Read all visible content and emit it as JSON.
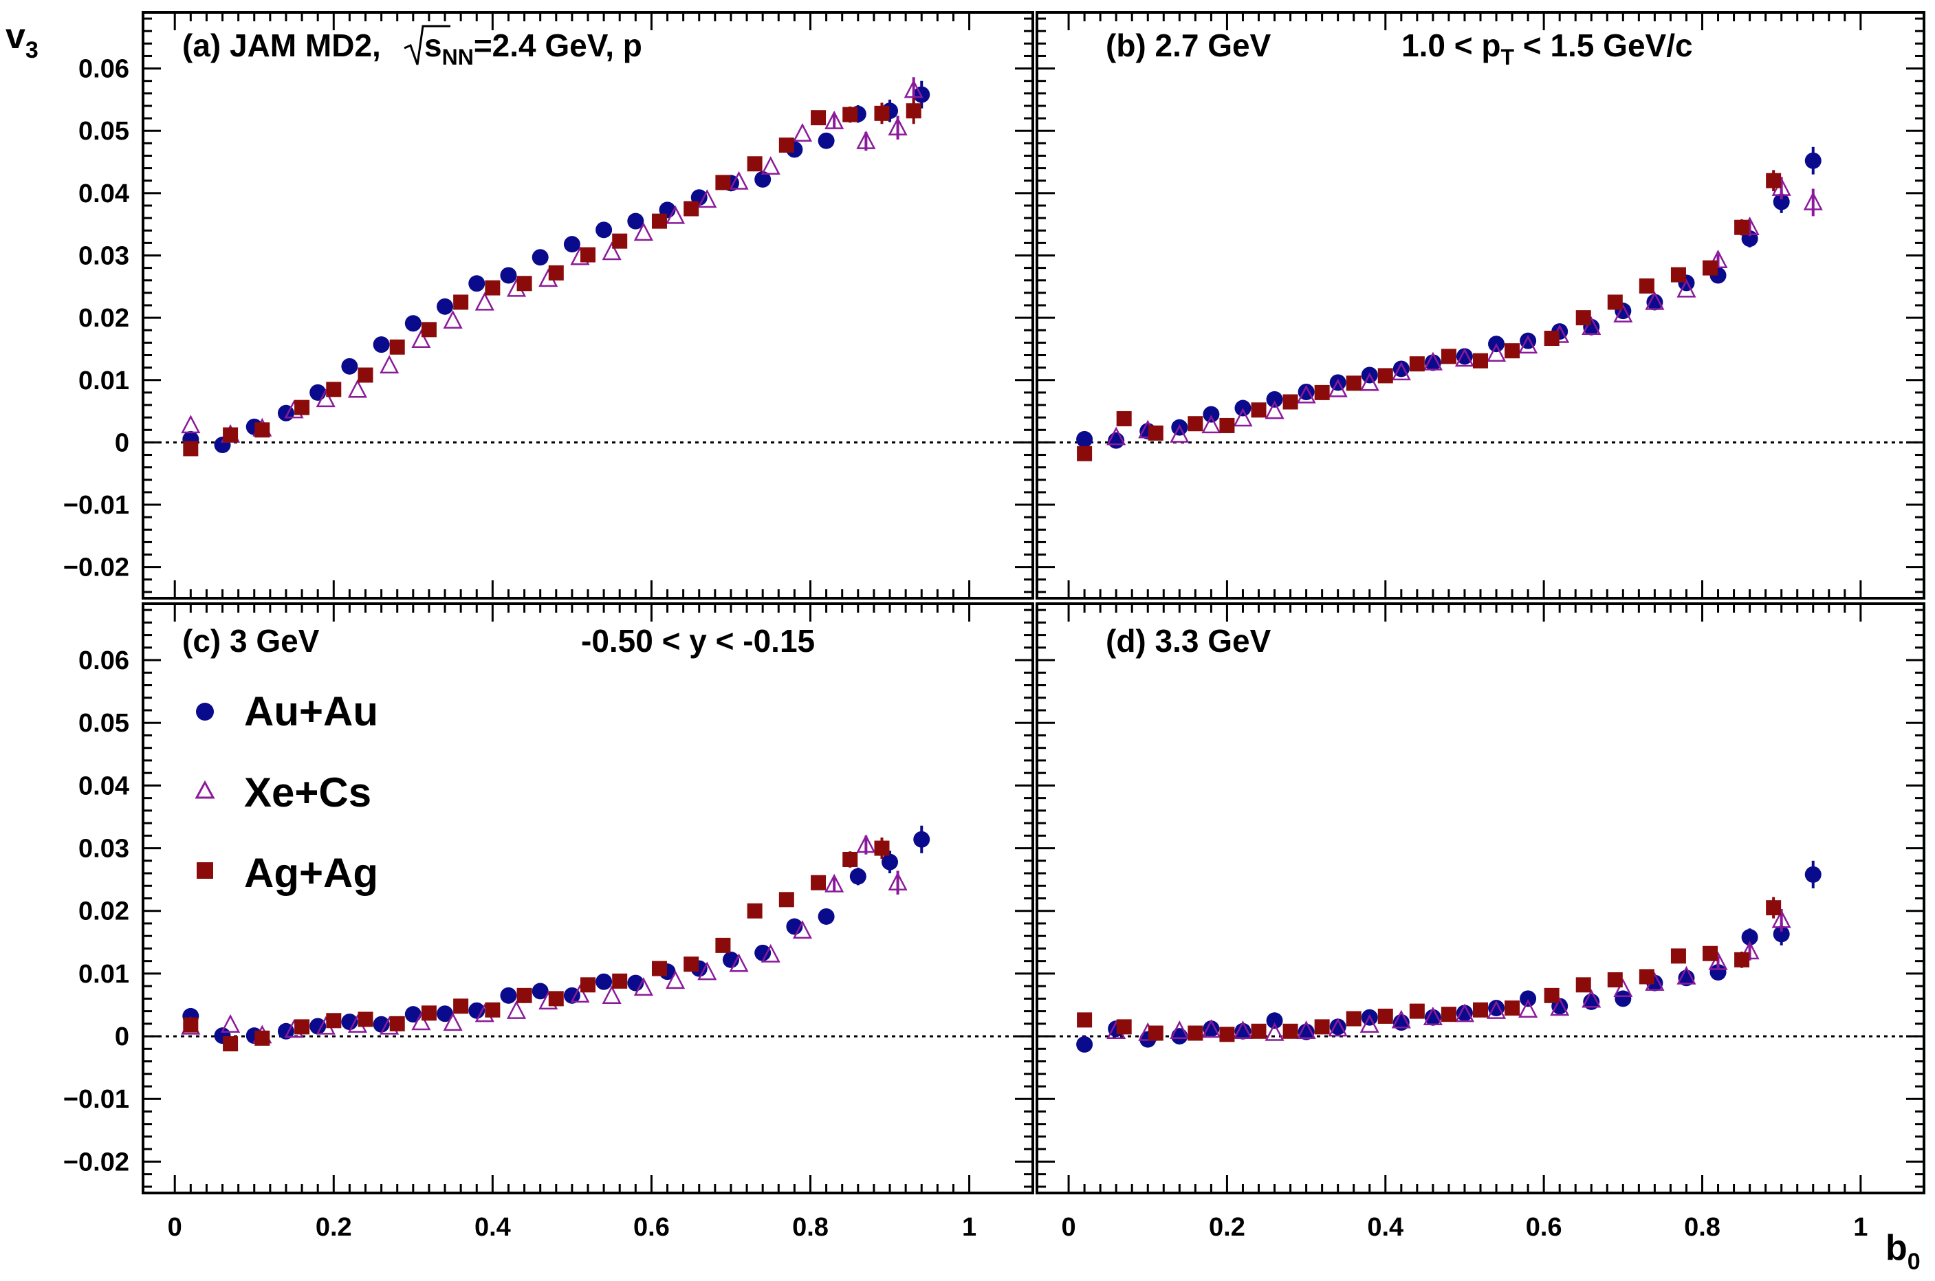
{
  "chart_data": {
    "type": "scatter",
    "xlabel": "b",
    "xlabel_sub": "0",
    "ylabel": "v",
    "ylabel_sub": "3",
    "xlim": [
      -0.04,
      1.08
    ],
    "ylim": [
      -0.025,
      0.069
    ],
    "x_ticks": [
      "0",
      "0.2",
      "0.4",
      "0.6",
      "0.8",
      "1"
    ],
    "y_ticks": [
      "0.06",
      "0.05",
      "0.04",
      "0.03",
      "0.02",
      "0.01",
      "0",
      "−0.01",
      "−0.02"
    ],
    "reference_line": 0,
    "legend": {
      "placement": "panel-c-left",
      "entries": [
        {
          "name": "Au+Au",
          "marker": "filled-circle",
          "color": "#0a0a8c"
        },
        {
          "name": "Xe+Cs",
          "marker": "open-triangle",
          "color": "#8b1a9b"
        },
        {
          "name": "Ag+Ag",
          "marker": "filled-square",
          "color": "#8b0a0a"
        }
      ]
    },
    "panels": [
      {
        "id": "a",
        "label_pre": "(a) JAM MD2,",
        "label_root": "s",
        "label_root_sub": "NN",
        "label_post": "=2.4 GeV, p",
        "cut_pre": "",
        "cut_sub": "",
        "cut_post": "",
        "series": [
          {
            "name": "Au+Au",
            "x": [
              0.02,
              0.06,
              0.1,
              0.14,
              0.18,
              0.22,
              0.26,
              0.3,
              0.34,
              0.38,
              0.42,
              0.46,
              0.5,
              0.54,
              0.58,
              0.62,
              0.66,
              0.7,
              0.74,
              0.78,
              0.82,
              0.86,
              0.9,
              0.94
            ],
            "y": [
              0.0005,
              -0.0004,
              0.0025,
              0.0047,
              0.008,
              0.0122,
              0.0157,
              0.0191,
              0.0218,
              0.0255,
              0.0268,
              0.0297,
              0.0318,
              0.0341,
              0.0355,
              0.0373,
              0.0393,
              0.0416,
              0.0422,
              0.047,
              0.0484,
              0.0527,
              0.0532,
              0.0558
            ]
          },
          {
            "name": "Xe+Cs",
            "x": [
              0.02,
              0.07,
              0.11,
              0.15,
              0.19,
              0.23,
              0.27,
              0.31,
              0.35,
              0.39,
              0.43,
              0.47,
              0.51,
              0.55,
              0.59,
              0.63,
              0.67,
              0.71,
              0.75,
              0.79,
              0.83,
              0.87,
              0.91,
              0.93
            ],
            "y": [
              0.0027,
              0.0012,
              0.0022,
              0.0051,
              0.0069,
              0.0084,
              0.0123,
              0.0164,
              0.0195,
              0.0224,
              0.0246,
              0.0262,
              0.0297,
              0.0305,
              0.0336,
              0.0363,
              0.0389,
              0.0418,
              0.0442,
              0.0495,
              0.0515,
              0.0483,
              0.0505,
              0.0565
            ]
          },
          {
            "name": "Ag+Ag",
            "x": [
              0.02,
              0.07,
              0.11,
              0.16,
              0.2,
              0.24,
              0.28,
              0.32,
              0.36,
              0.4,
              0.44,
              0.48,
              0.52,
              0.56,
              0.61,
              0.65,
              0.69,
              0.73,
              0.77,
              0.81,
              0.85,
              0.89,
              0.93
            ],
            "y": [
              -0.001,
              0.0012,
              0.002,
              0.0056,
              0.0085,
              0.0108,
              0.0153,
              0.0181,
              0.0225,
              0.0248,
              0.0255,
              0.0272,
              0.0301,
              0.0323,
              0.0355,
              0.0375,
              0.0417,
              0.0447,
              0.0477,
              0.0521,
              0.0526,
              0.0528,
              0.0532
            ]
          }
        ]
      },
      {
        "id": "b",
        "label_pre": "(b) 2.7 GeV",
        "label_root": "",
        "label_root_sub": "",
        "label_post": "",
        "cut_pre": "1.0 < p",
        "cut_sub": "T",
        "cut_post": " < 1.5 GeV/c",
        "series": [
          {
            "name": "Au+Au",
            "x": [
              0.02,
              0.06,
              0.1,
              0.14,
              0.18,
              0.22,
              0.26,
              0.3,
              0.34,
              0.38,
              0.42,
              0.46,
              0.5,
              0.54,
              0.58,
              0.62,
              0.66,
              0.7,
              0.74,
              0.78,
              0.82,
              0.86,
              0.9,
              0.94
            ],
            "y": [
              0.0005,
              0.0003,
              0.0018,
              0.0024,
              0.0045,
              0.0055,
              0.0069,
              0.0081,
              0.0096,
              0.0108,
              0.0118,
              0.0128,
              0.0138,
              0.0158,
              0.0163,
              0.0178,
              0.0185,
              0.0211,
              0.0225,
              0.0256,
              0.0268,
              0.0327,
              0.0386,
              0.0452
            ]
          },
          {
            "name": "Xe+Cs",
            "x": [
              0.06,
              0.1,
              0.14,
              0.18,
              0.22,
              0.26,
              0.3,
              0.34,
              0.38,
              0.42,
              0.46,
              0.5,
              0.54,
              0.58,
              0.62,
              0.66,
              0.7,
              0.74,
              0.78,
              0.82,
              0.86,
              0.9,
              0.94
            ],
            "y": [
              0.0008,
              0.0019,
              0.0012,
              0.0027,
              0.0038,
              0.005,
              0.0075,
              0.0085,
              0.0095,
              0.0112,
              0.0128,
              0.0134,
              0.0142,
              0.0155,
              0.0172,
              0.0185,
              0.0205,
              0.0225,
              0.0245,
              0.0292,
              0.0345,
              0.0408,
              0.0385
            ]
          },
          {
            "name": "Ag+Ag",
            "x": [
              0.02,
              0.07,
              0.11,
              0.16,
              0.2,
              0.24,
              0.28,
              0.32,
              0.36,
              0.4,
              0.44,
              0.48,
              0.52,
              0.56,
              0.61,
              0.65,
              0.69,
              0.73,
              0.77,
              0.81,
              0.85,
              0.89
            ],
            "y": [
              -0.0018,
              0.0038,
              0.0015,
              0.003,
              0.0027,
              0.0052,
              0.0065,
              0.008,
              0.0095,
              0.0107,
              0.0126,
              0.0138,
              0.0131,
              0.0147,
              0.0167,
              0.02,
              0.0225,
              0.0251,
              0.0269,
              0.028,
              0.0345,
              0.042
            ]
          }
        ]
      },
      {
        "id": "c",
        "label_pre": "(c) 3 GeV",
        "label_root": "",
        "label_root_sub": "",
        "label_post": "",
        "cut_pre": "-0.50 < y < -0.15",
        "cut_sub": "",
        "cut_post": "",
        "series": [
          {
            "name": "Au+Au",
            "x": [
              0.02,
              0.06,
              0.1,
              0.14,
              0.18,
              0.22,
              0.26,
              0.3,
              0.34,
              0.38,
              0.42,
              0.46,
              0.5,
              0.54,
              0.58,
              0.62,
              0.66,
              0.7,
              0.74,
              0.78,
              0.82,
              0.86,
              0.9,
              0.94
            ],
            "y": [
              0.0032,
              0.0001,
              0.0001,
              0.0008,
              0.0016,
              0.0023,
              0.0019,
              0.0035,
              0.0036,
              0.0041,
              0.0065,
              0.0072,
              0.0065,
              0.0087,
              0.0085,
              0.0103,
              0.0108,
              0.0122,
              0.0133,
              0.0175,
              0.0191,
              0.0255,
              0.0278,
              0.0314
            ]
          },
          {
            "name": "Xe+Cs",
            "x": [
              0.02,
              0.07,
              0.11,
              0.15,
              0.19,
              0.23,
              0.27,
              0.31,
              0.35,
              0.39,
              0.43,
              0.47,
              0.51,
              0.55,
              0.59,
              0.63,
              0.67,
              0.71,
              0.75,
              0.79,
              0.83,
              0.87,
              0.91
            ],
            "y": [
              0.0015,
              0.0018,
              0.0001,
              0.001,
              0.0015,
              0.0018,
              0.0015,
              0.0022,
              0.0021,
              0.0035,
              0.004,
              0.0055,
              0.0066,
              0.0064,
              0.0077,
              0.0088,
              0.0102,
              0.0115,
              0.013,
              0.0168,
              0.0242,
              0.0305,
              0.0245
            ]
          },
          {
            "name": "Ag+Ag",
            "x": [
              0.02,
              0.07,
              0.11,
              0.16,
              0.2,
              0.24,
              0.28,
              0.32,
              0.36,
              0.4,
              0.44,
              0.48,
              0.52,
              0.56,
              0.61,
              0.65,
              0.69,
              0.73,
              0.77,
              0.81,
              0.85,
              0.89
            ],
            "y": [
              0.0018,
              -0.0012,
              -0.0003,
              0.0015,
              0.0025,
              0.0027,
              0.002,
              0.0037,
              0.0048,
              0.0042,
              0.0065,
              0.006,
              0.0082,
              0.0088,
              0.0108,
              0.0115,
              0.0145,
              0.02,
              0.0218,
              0.0245,
              0.0282,
              0.03
            ]
          }
        ]
      },
      {
        "id": "d",
        "label_pre": "(d) 3.3 GeV",
        "label_root": "",
        "label_root_sub": "",
        "label_post": "",
        "cut_pre": "",
        "cut_sub": "",
        "cut_post": "",
        "series": [
          {
            "name": "Au+Au",
            "x": [
              0.02,
              0.06,
              0.1,
              0.14,
              0.18,
              0.22,
              0.26,
              0.3,
              0.34,
              0.38,
              0.42,
              0.46,
              0.5,
              0.54,
              0.58,
              0.62,
              0.66,
              0.7,
              0.74,
              0.78,
              0.82,
              0.86,
              0.9,
              0.94
            ],
            "y": [
              -0.0013,
              0.0012,
              -0.0005,
              0.0,
              0.0012,
              0.0008,
              0.0025,
              0.0007,
              0.0015,
              0.003,
              0.0022,
              0.003,
              0.0037,
              0.0045,
              0.006,
              0.0048,
              0.0055,
              0.006,
              0.0085,
              0.0093,
              0.0102,
              0.0158,
              0.0163,
              0.0258
            ]
          },
          {
            "name": "Xe+Cs",
            "x": [
              0.06,
              0.1,
              0.14,
              0.18,
              0.22,
              0.26,
              0.3,
              0.34,
              0.38,
              0.42,
              0.46,
              0.5,
              0.54,
              0.58,
              0.62,
              0.66,
              0.7,
              0.74,
              0.78,
              0.82,
              0.86,
              0.9
            ],
            "y": [
              0.0008,
              0.0005,
              0.0008,
              0.001,
              0.0008,
              0.0005,
              0.0008,
              0.0012,
              0.0018,
              0.0025,
              0.003,
              0.0035,
              0.004,
              0.0042,
              0.0045,
              0.0058,
              0.0075,
              0.0085,
              0.0095,
              0.0118,
              0.0135,
              0.0185
            ]
          },
          {
            "name": "Ag+Ag",
            "x": [
              0.02,
              0.07,
              0.11,
              0.16,
              0.2,
              0.24,
              0.28,
              0.32,
              0.36,
              0.4,
              0.44,
              0.48,
              0.52,
              0.56,
              0.61,
              0.65,
              0.69,
              0.73,
              0.77,
              0.81,
              0.85,
              0.89
            ],
            "y": [
              0.0026,
              0.0015,
              0.0005,
              0.0005,
              0.0003,
              0.0008,
              0.0008,
              0.0015,
              0.0028,
              0.0032,
              0.004,
              0.0035,
              0.0042,
              0.0045,
              0.0065,
              0.0082,
              0.009,
              0.0095,
              0.0128,
              0.0132,
              0.0122,
              0.0205
            ]
          }
        ]
      }
    ]
  }
}
